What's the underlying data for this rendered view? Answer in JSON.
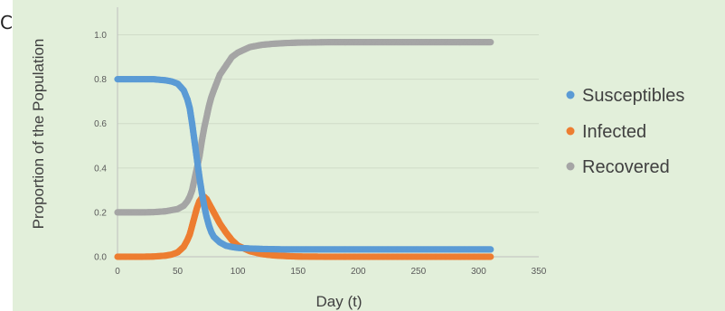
{
  "corner_mark": "C",
  "colors": {
    "background": "#e2efda",
    "grid": "#d0dcc8",
    "axis": "#bfbfbf",
    "susceptibles": "#5b9bd5",
    "infected": "#ed7d31",
    "recovered": "#a5a5a5"
  },
  "chart_data": {
    "type": "scatter",
    "title": "",
    "xlabel": "Day (t)",
    "ylabel": "Proportion of the Population",
    "xlim": [
      0,
      350
    ],
    "ylim": [
      0,
      1.1
    ],
    "xticks": [
      0,
      50,
      100,
      150,
      200,
      250,
      300,
      350
    ],
    "yticks": [
      0.0,
      0.2,
      0.4,
      0.6,
      0.8,
      1.0
    ],
    "ytick_labels": [
      "0.0",
      "0.2",
      "0.4",
      "0.6",
      "0.8",
      "1.0"
    ],
    "grid": true,
    "legend_position": "right",
    "x": [
      0,
      10,
      20,
      30,
      40,
      45,
      50,
      55,
      58,
      60,
      62,
      64,
      66,
      68,
      70,
      72,
      74,
      76,
      78,
      80,
      85,
      90,
      95,
      100,
      110,
      120,
      130,
      140,
      150,
      175,
      200,
      225,
      250,
      275,
      300,
      310
    ],
    "series": [
      {
        "name": "Susceptibles",
        "values": [
          0.8,
          0.8,
          0.8,
          0.8,
          0.795,
          0.79,
          0.78,
          0.75,
          0.71,
          0.67,
          0.6,
          0.52,
          0.44,
          0.36,
          0.29,
          0.23,
          0.18,
          0.14,
          0.11,
          0.09,
          0.065,
          0.05,
          0.044,
          0.04,
          0.037,
          0.035,
          0.034,
          0.033,
          0.033,
          0.033,
          0.033,
          0.033,
          0.033,
          0.033,
          0.033,
          0.033
        ]
      },
      {
        "name": "Infected",
        "values": [
          0.0,
          0.0,
          0.0,
          0.001,
          0.005,
          0.01,
          0.02,
          0.045,
          0.075,
          0.1,
          0.14,
          0.18,
          0.22,
          0.25,
          0.265,
          0.27,
          0.26,
          0.24,
          0.22,
          0.2,
          0.15,
          0.11,
          0.075,
          0.05,
          0.025,
          0.012,
          0.006,
          0.003,
          0.001,
          0.0,
          0.0,
          0.0,
          0.0,
          0.0,
          0.0,
          0.0
        ]
      },
      {
        "name": "Recovered",
        "values": [
          0.2,
          0.2,
          0.2,
          0.201,
          0.205,
          0.21,
          0.215,
          0.23,
          0.25,
          0.27,
          0.3,
          0.35,
          0.4,
          0.45,
          0.52,
          0.58,
          0.63,
          0.68,
          0.72,
          0.75,
          0.82,
          0.86,
          0.9,
          0.92,
          0.945,
          0.955,
          0.96,
          0.963,
          0.965,
          0.967,
          0.967,
          0.967,
          0.967,
          0.967,
          0.967,
          0.967
        ]
      }
    ]
  }
}
